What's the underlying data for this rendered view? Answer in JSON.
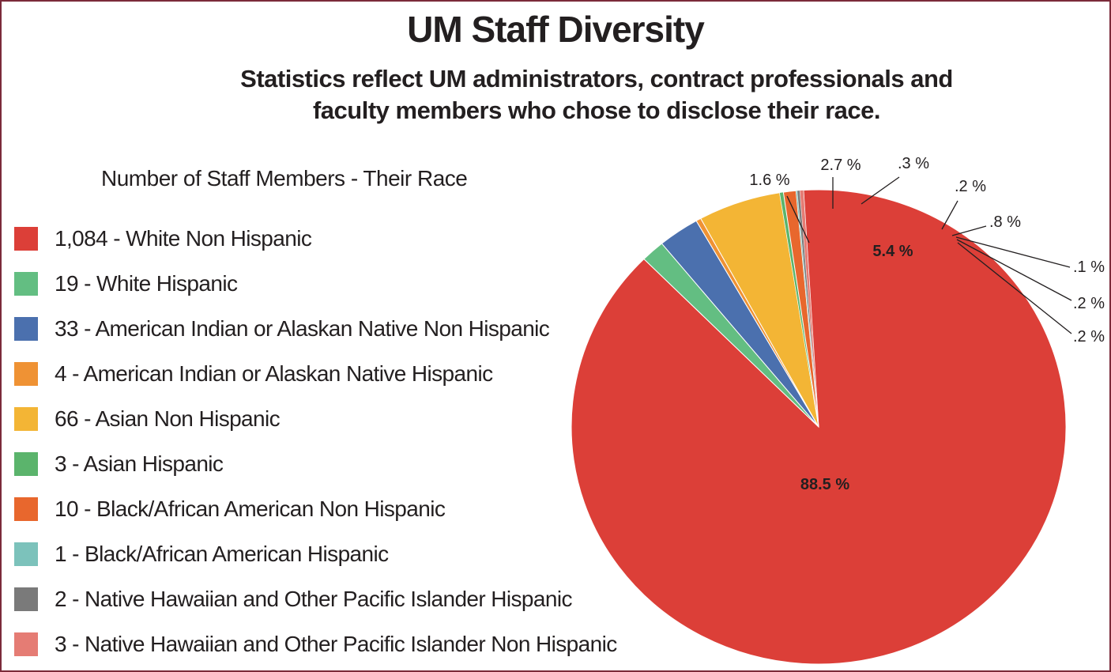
{
  "header": {
    "title": "UM Staff Diversity",
    "subtitle_line1": "Statistics reflect UM administrators, contract professionals and",
    "subtitle_line2": "faculty members who chose to disclose their race."
  },
  "legend": {
    "heading": "Number of Staff Members - Their Race",
    "items": [
      {
        "label": "1,084 - White Non Hispanic",
        "color": "#dc3f38"
      },
      {
        "label": "19 - White Hispanic",
        "color": "#63be82"
      },
      {
        "label": "33 - American Indian or Alaskan Native Non Hispanic",
        "color": "#4b70ae"
      },
      {
        "label": "4 - American Indian or Alaskan Native Hispanic",
        "color": "#ef9234"
      },
      {
        "label": "66 - Asian Non Hispanic",
        "color": "#f3b535"
      },
      {
        "label": "3 - Asian Hispanic",
        "color": "#5bb46c"
      },
      {
        "label": "10 - Black/African American Non Hispanic",
        "color": "#e8672d"
      },
      {
        "label": "1 - Black/African American Hispanic",
        "color": "#7cc2bb"
      },
      {
        "label": "2 - Native Hawaiian and Other Pacific Islander Hispanic",
        "color": "#7a7a7a"
      },
      {
        "label": "3 - Native Hawaiian and Other Pacific Islander Non Hispanic",
        "color": "#e57c74"
      }
    ]
  },
  "chart_data": {
    "type": "pie",
    "title": "UM Staff Diversity",
    "legend_position": "left",
    "slices": [
      {
        "category": "White Non Hispanic",
        "count": 1084,
        "percent_label": "88.5 %",
        "color": "#dc3f38"
      },
      {
        "category": "White Hispanic",
        "count": 19,
        "percent_label": "1.6 %",
        "color": "#63be82"
      },
      {
        "category": "American Indian or Alaskan Native Non Hispanic",
        "count": 33,
        "percent_label": "2.7 %",
        "color": "#4b70ae"
      },
      {
        "category": "American Indian or Alaskan Native Hispanic",
        "count": 4,
        "percent_label": ".3 %",
        "color": "#ef9234"
      },
      {
        "category": "Asian Non Hispanic",
        "count": 66,
        "percent_label": "5.4 %",
        "color": "#f3b535"
      },
      {
        "category": "Asian Hispanic",
        "count": 3,
        "percent_label": ".2 %",
        "color": "#5bb46c"
      },
      {
        "category": "Black/African American Non Hispanic",
        "count": 10,
        "percent_label": ".8 %",
        "color": "#e8672d"
      },
      {
        "category": "Black/African American Hispanic",
        "count": 1,
        "percent_label": ".1 %",
        "color": "#7cc2bb"
      },
      {
        "category": "Native Hawaiian and Other Pacific Islander Hispanic",
        "count": 2,
        "percent_label": ".2 %",
        "color": "#7a7a7a"
      },
      {
        "category": "Native Hawaiian and Other Pacific Islander Non Hispanic",
        "count": 3,
        "percent_label": ".2 %",
        "color": "#e57c74"
      }
    ]
  }
}
